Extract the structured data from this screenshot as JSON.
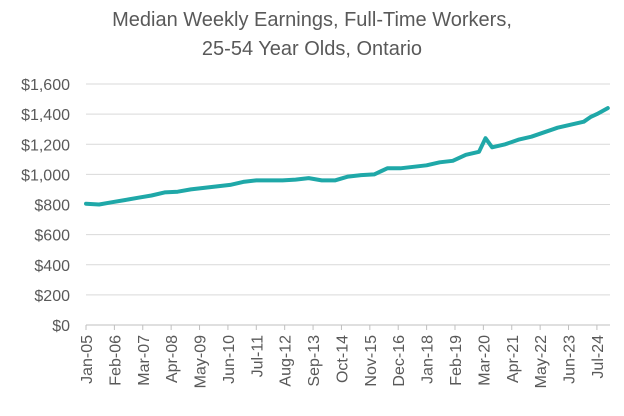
{
  "chart_data": {
    "type": "line",
    "title_line1": "Median Weekly Earnings, Full-Time Workers,",
    "title_line2": "25-54 Year Olds, Ontario",
    "xlabel": "",
    "ylabel": "",
    "ylim": [
      0,
      1600
    ],
    "yticks": [
      "$0",
      "$200",
      "$400",
      "$600",
      "$800",
      "$1,000",
      "$1,200",
      "$1,400",
      "$1,600"
    ],
    "xtick_labels": [
      "Jan-05",
      "Feb-06",
      "Mar-07",
      "Apr-08",
      "May-09",
      "Jun-10",
      "Jul-11",
      "Aug-12",
      "Sep-13",
      "Oct-14",
      "Nov-15",
      "Dec-16",
      "Jan-18",
      "Feb-19",
      "Mar-20",
      "Apr-21",
      "May-22",
      "Jun-23",
      "Jul-24"
    ],
    "x_range": [
      "2005-01",
      "2024-12"
    ],
    "grid": "horizontal",
    "legend": "none",
    "series_color": "#1fa8a8",
    "series": [
      {
        "x": [
          "2005-01",
          "2005-07",
          "2006-01",
          "2006-07",
          "2007-01",
          "2007-07",
          "2008-01",
          "2008-07",
          "2009-01",
          "2009-07",
          "2010-01",
          "2010-07",
          "2011-01",
          "2011-07",
          "2012-01",
          "2012-07",
          "2013-01",
          "2013-07",
          "2014-01",
          "2014-07",
          "2015-01",
          "2015-07",
          "2016-01",
          "2016-07",
          "2017-01",
          "2017-07",
          "2018-01",
          "2018-07",
          "2019-01",
          "2019-07",
          "2020-01",
          "2020-04",
          "2020-07",
          "2021-01",
          "2021-07",
          "2022-01",
          "2022-07",
          "2023-01",
          "2023-07",
          "2024-01",
          "2024-04",
          "2024-07",
          "2024-12"
        ],
        "values": [
          805,
          800,
          815,
          830,
          845,
          860,
          880,
          885,
          900,
          910,
          920,
          930,
          950,
          960,
          960,
          960,
          965,
          975,
          960,
          960,
          985,
          995,
          1000,
          1040,
          1040,
          1050,
          1060,
          1080,
          1090,
          1130,
          1150,
          1240,
          1180,
          1200,
          1230,
          1250,
          1280,
          1310,
          1330,
          1350,
          1380,
          1400,
          1440
        ]
      }
    ]
  }
}
